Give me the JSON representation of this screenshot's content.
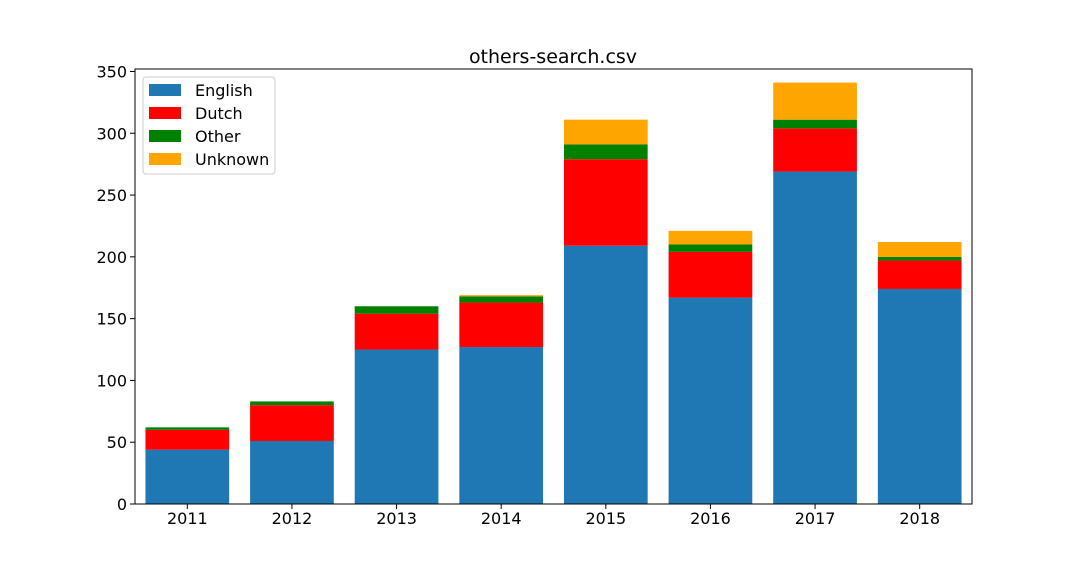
{
  "chart_data": {
    "type": "bar",
    "stacked": true,
    "title": "others-search.csv",
    "xlabel": "",
    "ylabel": "",
    "categories": [
      "2011",
      "2012",
      "2013",
      "2014",
      "2015",
      "2016",
      "2017",
      "2018"
    ],
    "ylim": [
      0,
      352
    ],
    "yticks": [
      "0",
      "50",
      "100",
      "150",
      "200",
      "250",
      "300",
      "350"
    ],
    "grid": false,
    "legend_position": "top-left",
    "series": [
      {
        "name": "English",
        "color": "#1f77b4",
        "values": [
          44,
          51,
          125,
          127,
          209,
          167,
          269,
          174
        ]
      },
      {
        "name": "Dutch",
        "color": "#ff0000",
        "values": [
          16,
          29,
          29,
          36,
          70,
          37,
          35,
          23
        ]
      },
      {
        "name": "Other",
        "color": "#008000",
        "values": [
          2,
          3,
          6,
          5,
          12,
          6,
          7,
          3
        ]
      },
      {
        "name": "Unknown",
        "color": "#ffa500",
        "values": [
          0,
          0,
          0,
          1,
          20,
          11,
          30,
          12
        ]
      }
    ]
  }
}
